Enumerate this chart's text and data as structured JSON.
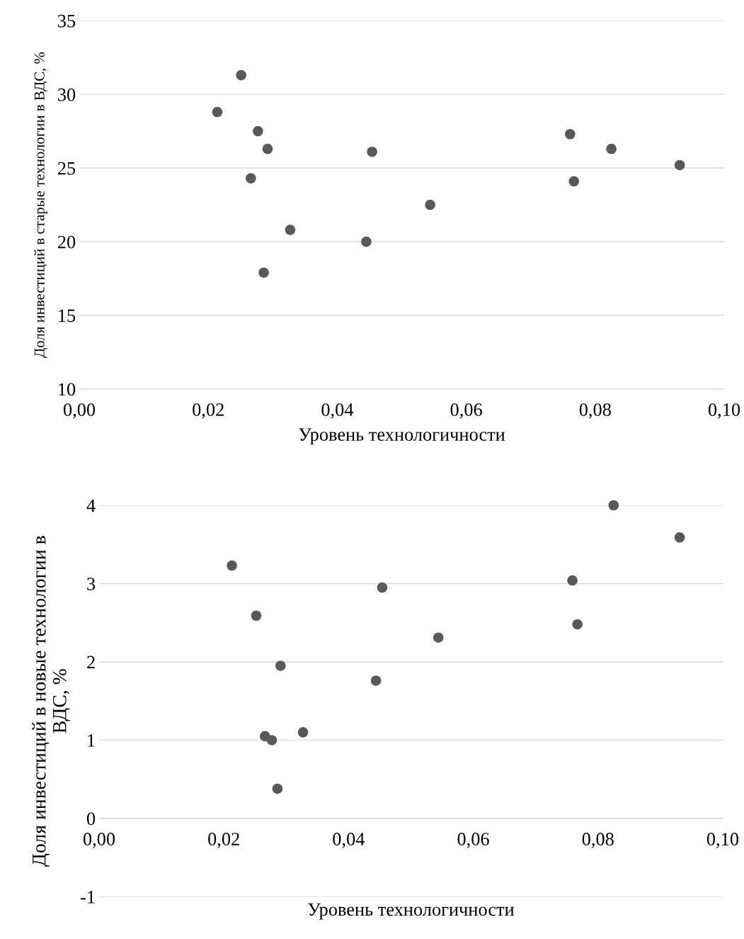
{
  "chart_data": [
    {
      "type": "scatter",
      "xlabel": "Уровень технологичности",
      "ylabel": "Доля инвестиций в старые технологии в ВДС, %",
      "x": [
        0.0214,
        0.0251,
        0.0277,
        0.0292,
        0.0266,
        0.0327,
        0.0286,
        0.0454,
        0.0445,
        0.0544,
        0.0761,
        0.0767,
        0.0825,
        0.0931
      ],
      "series": [
        {
          "color": "#595959",
          "values": [
            28.8,
            31.3,
            27.5,
            26.3,
            24.3,
            20.8,
            17.9,
            26.1,
            20.0,
            22.5,
            27.3,
            24.1,
            26.3,
            25.2
          ]
        }
      ],
      "xlim": [
        0,
        0.1
      ],
      "xticks": [
        {
          "value": 0,
          "label": "0,00"
        },
        {
          "value": 0.02,
          "label": "0,02"
        },
        {
          "value": 0.04,
          "label": "0,04"
        },
        {
          "value": 0.06,
          "label": "0,06"
        },
        {
          "value": 0.08,
          "label": "0,08"
        },
        {
          "value": 0.1,
          "label": "0,10"
        }
      ],
      "ylim": [
        10,
        35
      ],
      "yticks": [
        10,
        15,
        20,
        25,
        30,
        35
      ],
      "grid": "y",
      "marker": "circle"
    },
    {
      "type": "scatter",
      "xlabel": "Уровень технологичности",
      "ylabel": "Доля инвестиций в новые технологии в\nВДС, %",
      "x": [
        0.0213,
        0.0252,
        0.0266,
        0.0277,
        0.0291,
        0.0286,
        0.0327,
        0.0454,
        0.0444,
        0.0544,
        0.0759,
        0.0767,
        0.0825,
        0.0931
      ],
      "series": [
        {
          "color": "#595959",
          "values": [
            3.23,
            2.59,
            1.05,
            1.0,
            1.95,
            0.38,
            1.1,
            2.95,
            1.76,
            2.31,
            3.04,
            2.48,
            4.0,
            3.59
          ]
        }
      ],
      "xlim": [
        0,
        0.1
      ],
      "xticks": [
        {
          "value": 0,
          "label": "0,00"
        },
        {
          "value": 0.02,
          "label": "0,02"
        },
        {
          "value": 0.04,
          "label": "0,04"
        },
        {
          "value": 0.06,
          "label": "0,06"
        },
        {
          "value": 0.08,
          "label": "0,08"
        },
        {
          "value": 0.1,
          "label": "0,10"
        }
      ],
      "ylim": [
        -1,
        4
      ],
      "yticks": [
        -1,
        0,
        1,
        2,
        3,
        4
      ],
      "grid": "y",
      "marker": "circle"
    }
  ]
}
